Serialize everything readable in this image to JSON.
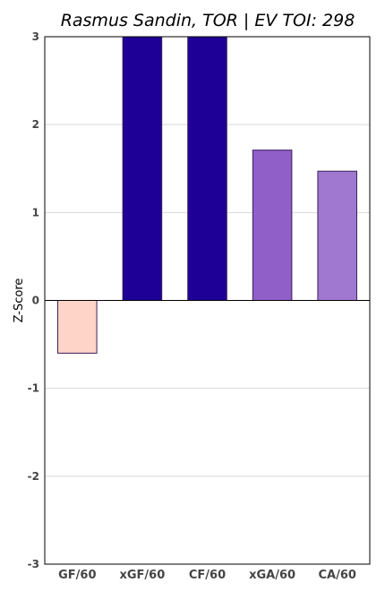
{
  "chart_data": {
    "type": "bar",
    "title": "Rasmus Sandin, TOR  |  EV TOI: 298",
    "xlabel": "",
    "ylabel": "Z-Score",
    "categories": [
      "GF/60",
      "xGF/60",
      "CF/60",
      "xGA/60",
      "CA/60"
    ],
    "values": [
      -0.6,
      3.0,
      3.0,
      1.71,
      1.47
    ],
    "colors": [
      "#ffd4c8",
      "#1e0096",
      "#1e0096",
      "#9060c8",
      "#a078d0"
    ],
    "ylim": [
      -3,
      3
    ],
    "yticks": [
      -3,
      -2,
      -1,
      0,
      1,
      2,
      3
    ],
    "grid": true,
    "legend": "none"
  }
}
